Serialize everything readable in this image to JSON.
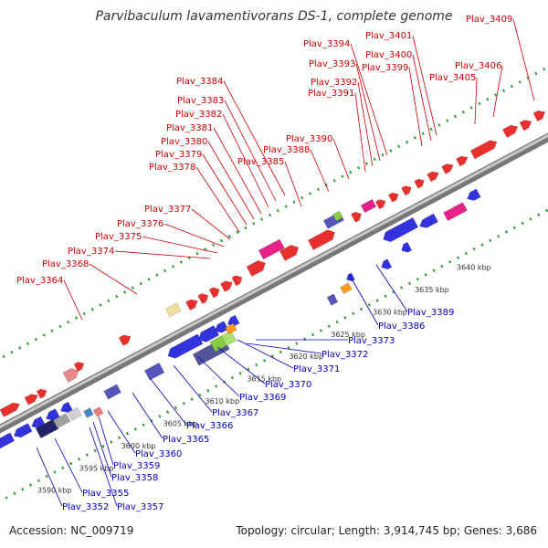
{
  "title": "Parvibaculum lavamentivorans DS-1, complete genome",
  "accession_text": "Accession: NC_009719",
  "stats_text": "Topology: circular; Length: 3,914,745 bp; Genes: 3,686",
  "colors": {
    "forward_label": "#cc0000",
    "reverse_label": "#0000bb",
    "backbone": "#8c8c8c",
    "tick": "#339933"
  },
  "scale_labels": [
    "3590 kbp",
    "3595 kbp",
    "3600 kbp",
    "3605 kbp",
    "3610 kbp",
    "3615 kbp",
    "3620 kbp",
    "3625 kbp",
    "3630 kbp",
    "3635 kbp",
    "3640 kbp"
  ],
  "forward_genes": [
    "Plav_3364",
    "Plav_3368",
    "Plav_3374",
    "Plav_3375",
    "Plav_3376",
    "Plav_3377",
    "Plav_3378",
    "Plav_3379",
    "Plav_3380",
    "Plav_3381",
    "Plav_3382",
    "Plav_3383",
    "Plav_3384",
    "Plav_3385",
    "Plav_3388",
    "Plav_3390",
    "Plav_3391",
    "Plav_3392",
    "Plav_3393",
    "Plav_3394",
    "Plav_3399",
    "Plav_3400",
    "Plav_3401",
    "Plav_3405",
    "Plav_3406",
    "Plav_3409"
  ],
  "reverse_genes": [
    "Plav_3352",
    "Plav_3355",
    "Plav_3357",
    "Plav_3358",
    "Plav_3359",
    "Plav_3360",
    "Plav_3365",
    "Plav_3366",
    "Plav_3367",
    "Plav_3369",
    "Plav_3370",
    "Plav_3371",
    "Plav_3372",
    "Plav_3373",
    "Plav_3386",
    "Plav_3389"
  ]
}
